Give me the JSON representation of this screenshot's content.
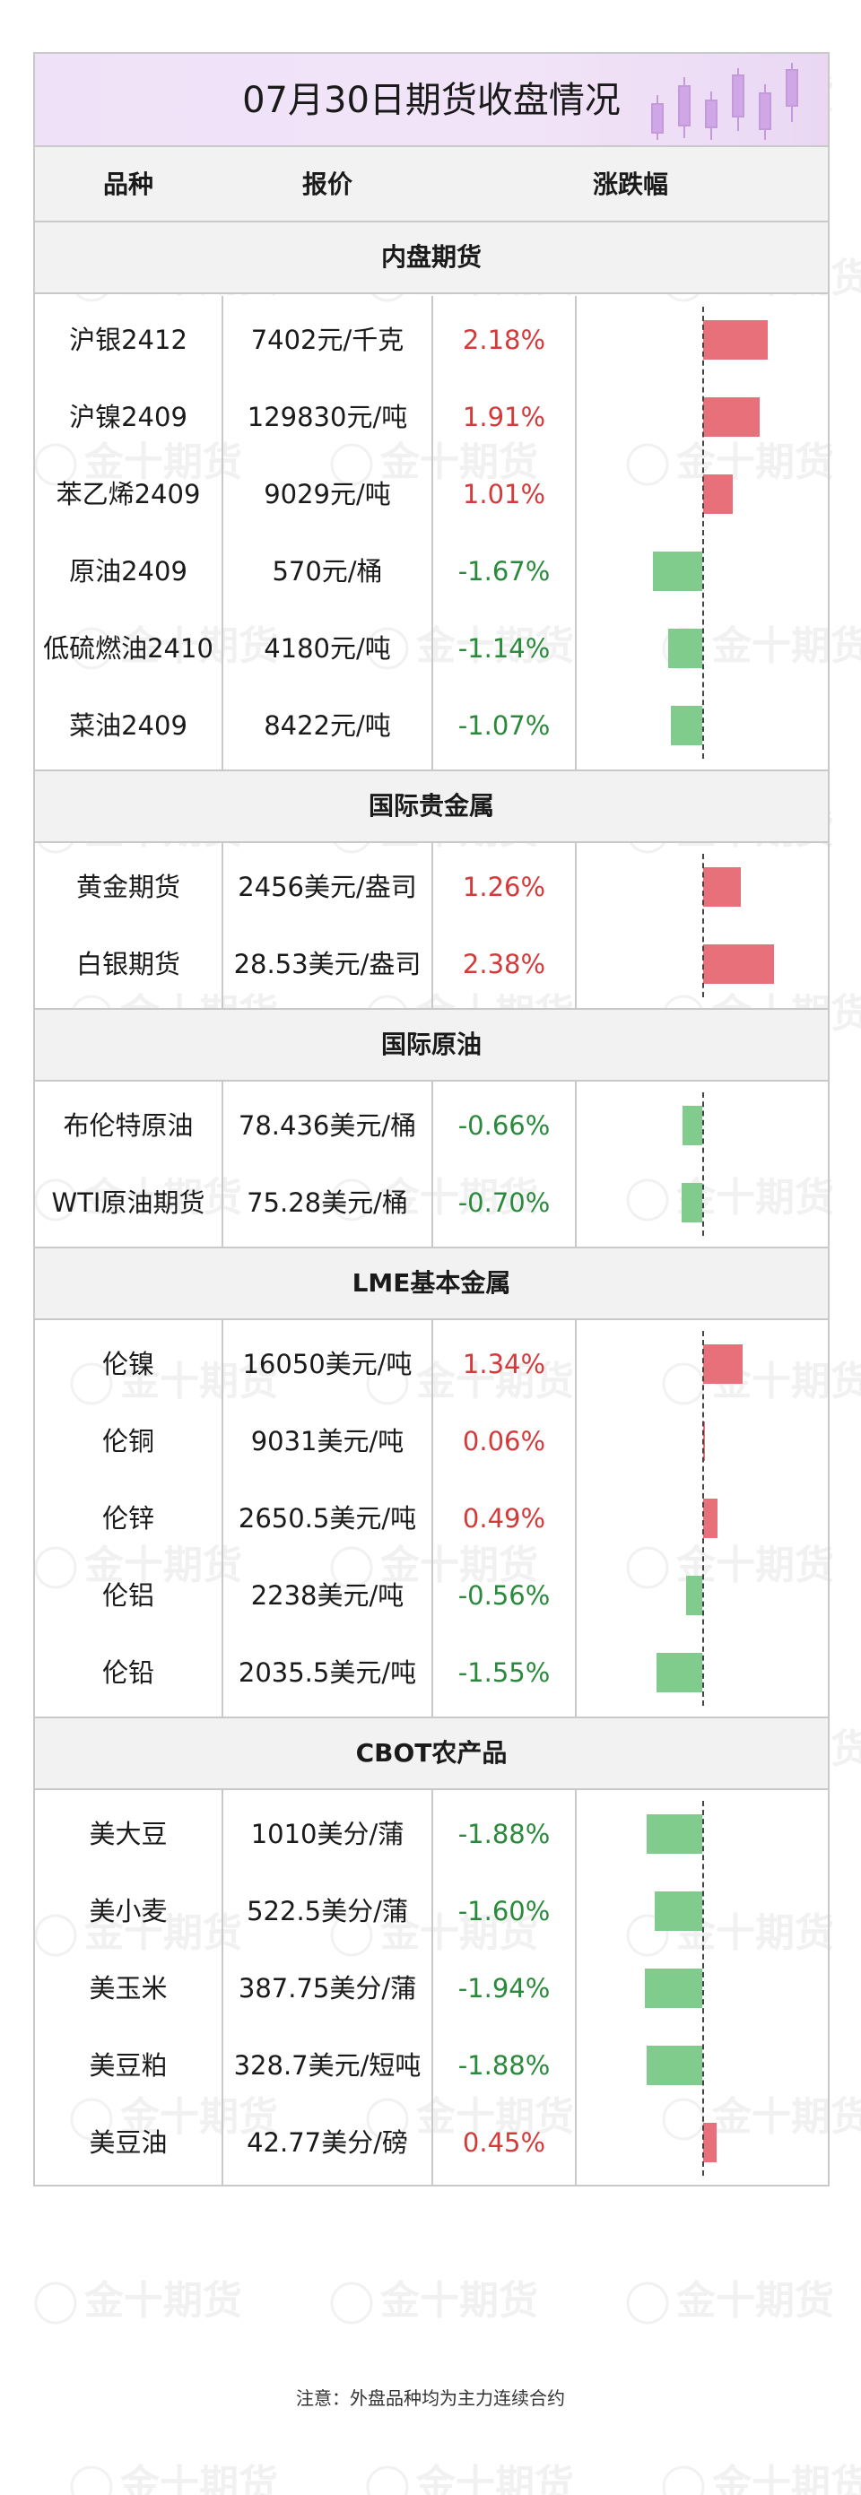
{
  "title": "07月30日期货收盘情况",
  "headers": {
    "name": "品种",
    "price": "报价",
    "change": "涨跌幅"
  },
  "watermark": "金十期货",
  "colors": {
    "up": "#d43a3a",
    "down": "#2a8a3c",
    "up_bar": "#e8707a",
    "down_bar": "#7fcc8c",
    "title_bg": "#efe1f7"
  },
  "sections": [
    {
      "title": "内盘期货",
      "rows": [
        {
          "name": "沪银2412",
          "price": "7402元/千克",
          "change": "2.18%",
          "value": 2.18
        },
        {
          "name": "沪镍2409",
          "price": "129830元/吨",
          "change": "1.91%",
          "value": 1.91
        },
        {
          "name": "苯乙烯2409",
          "price": "9029元/吨",
          "change": "1.01%",
          "value": 1.01
        },
        {
          "name": "原油2409",
          "price": "570元/桶",
          "change": "-1.67%",
          "value": -1.67
        },
        {
          "name": "低硫燃油2410",
          "price": "4180元/吨",
          "change": "-1.14%",
          "value": -1.14
        },
        {
          "name": "菜油2409",
          "price": "8422元/吨",
          "change": "-1.07%",
          "value": -1.07
        }
      ]
    },
    {
      "title": "国际贵金属",
      "rows": [
        {
          "name": "黄金期货",
          "price": "2456美元/盎司",
          "change": "1.26%",
          "value": 1.26
        },
        {
          "name": "白银期货",
          "price": "28.53美元/盎司",
          "change": "2.38%",
          "value": 2.38
        }
      ]
    },
    {
      "title": "国际原油",
      "rows": [
        {
          "name": "布伦特原油",
          "price": "78.436美元/桶",
          "change": "-0.66%",
          "value": -0.66
        },
        {
          "name": "WTI原油期货",
          "price": "75.28美元/桶",
          "change": "-0.70%",
          "value": -0.7
        }
      ]
    },
    {
      "title": "LME基本金属",
      "rows": [
        {
          "name": "伦镍",
          "price": "16050美元/吨",
          "change": "1.34%",
          "value": 1.34
        },
        {
          "name": "伦铜",
          "price": "9031美元/吨",
          "change": "0.06%",
          "value": 0.06
        },
        {
          "name": "伦锌",
          "price": "2650.5美元/吨",
          "change": "0.49%",
          "value": 0.49
        },
        {
          "name": "伦铝",
          "price": "2238美元/吨",
          "change": "-0.56%",
          "value": -0.56
        },
        {
          "name": "伦铅",
          "price": "2035.5美元/吨",
          "change": "-1.55%",
          "value": -1.55
        }
      ]
    },
    {
      "title": "CBOT农产品",
      "rows": [
        {
          "name": "美大豆",
          "price": "1010美分/蒲",
          "change": "-1.88%",
          "value": -1.88
        },
        {
          "name": "美小麦",
          "price": "522.5美分/蒲",
          "change": "-1.60%",
          "value": -1.6
        },
        {
          "name": "美玉米",
          "price": "387.75美分/蒲",
          "change": "-1.94%",
          "value": -1.94
        },
        {
          "name": "美豆粕",
          "price": "328.7美元/短吨",
          "change": "-1.88%",
          "value": -1.88
        },
        {
          "name": "美豆油",
          "price": "42.77美分/磅",
          "change": "0.45%",
          "value": 0.45
        }
      ]
    }
  ],
  "note": "注意：外盘品种均为主力连续合约"
}
